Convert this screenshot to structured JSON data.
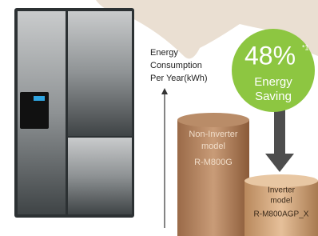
{
  "axis_label": {
    "lines": [
      "Energy",
      "Consumption",
      "Per Year(kWh)"
    ]
  },
  "badge": {
    "value": "48%",
    "note": "*1",
    "lines": [
      "Energy",
      "Saving"
    ]
  },
  "non_inverter": {
    "lines": [
      "Non-Inverter",
      "model",
      "R-M800G"
    ]
  },
  "inverter": {
    "lines": [
      "Inverter",
      "model",
      "R-M800AGP_X"
    ]
  }
}
